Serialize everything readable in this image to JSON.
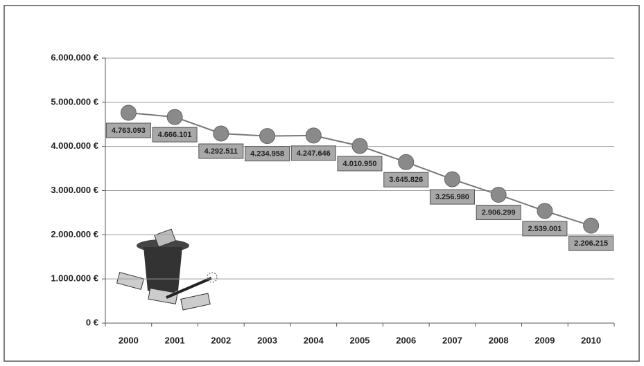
{
  "chart_data": {
    "type": "line",
    "categories": [
      "2000",
      "2001",
      "2002",
      "2003",
      "2004",
      "2005",
      "2006",
      "2007",
      "2008",
      "2009",
      "2010"
    ],
    "values": [
      4763093,
      4666101,
      4292511,
      4234958,
      4247646,
      4010950,
      3645826,
      3256980,
      2906299,
      2539001,
      2206215
    ],
    "value_labels": [
      "4.763.093",
      "4.666.101",
      "4.292.511",
      "4.234.958",
      "4.247.646",
      "4.010.950",
      "3.645.826",
      "3.256.980",
      "2.906.299",
      "2.539.001",
      "2.206.215"
    ],
    "color": "#8a8a8a",
    "ylim": [
      0,
      6000000
    ],
    "yticks": [
      {
        "value": 0,
        "label": "0 €"
      },
      {
        "value": 1000000,
        "label": "1.000.000 €"
      },
      {
        "value": 2000000,
        "label": "2.000.000 €"
      },
      {
        "value": 3000000,
        "label": "3.000.000 €"
      },
      {
        "value": 4000000,
        "label": "4.000.000 €"
      },
      {
        "value": 5000000,
        "label": "5.000.000 €"
      },
      {
        "value": 6000000,
        "label": "6.000.000 €"
      }
    ],
    "grid": true
  }
}
